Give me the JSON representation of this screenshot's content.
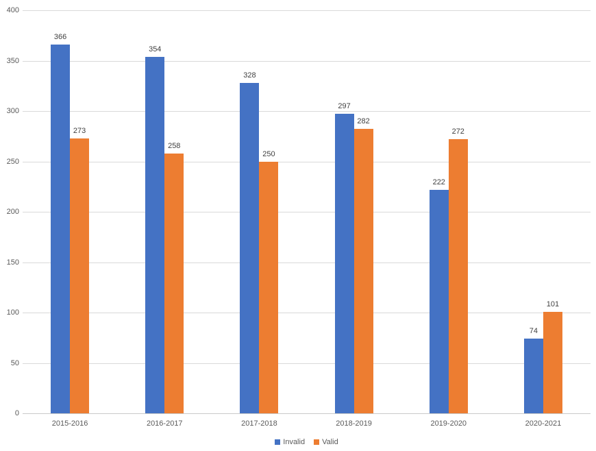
{
  "chart_data": {
    "type": "bar",
    "title": "",
    "categories": [
      "2015-2016",
      "2016-2017",
      "2017-2018",
      "2018-2019",
      "2019-2020",
      "2020-2021"
    ],
    "series": [
      {
        "name": "Invalid",
        "color": "#4472C4",
        "values": [
          366,
          354,
          328,
          297,
          222,
          74
        ]
      },
      {
        "name": "Valid",
        "color": "#ED7D31",
        "values": [
          273,
          258,
          250,
          282,
          272,
          101
        ]
      }
    ],
    "ylim": [
      0,
      400
    ],
    "yticks": [
      0,
      50,
      100,
      150,
      200,
      250,
      300,
      350,
      400
    ],
    "xlabel": "",
    "ylabel": "",
    "grid": "horizontal",
    "legend_position": "bottom",
    "data_labels": true,
    "styles": {
      "background": "#FFFFFF",
      "gridline_color": "#D9D9D9",
      "axis_line_color": "#C9C9C9",
      "tick_label_color": "#595959",
      "data_label_color": "#404040",
      "legend_text_color": "#595959"
    }
  }
}
